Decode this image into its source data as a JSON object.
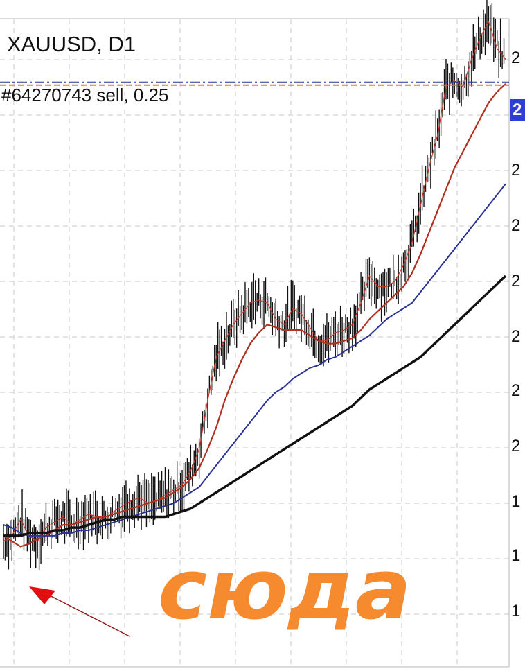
{
  "header": {
    "title": "XAUUSD, D1",
    "order_label": "#64270743 sell, 0.25"
  },
  "price_tag": "2",
  "y_tick_labels": [
    "2",
    "2",
    "2",
    "2",
    "2",
    "2",
    "2",
    "1",
    "1",
    "1"
  ],
  "annotation": {
    "text": "сюда",
    "color": "#f68a2e"
  },
  "colors": {
    "ma_fast": "#c0392b",
    "ma_mid": "#b03020",
    "ma_slow": "#2a3296",
    "ma_long": "#111111",
    "arrow": "#e01010",
    "order_line": "#2a3296",
    "order_dash": "#c9862a",
    "price_tag_bg": "#2f3fd6"
  },
  "chart_data": {
    "type": "line",
    "title": "XAUUSD, D1",
    "series": [
      {
        "values": [
          0.78,
          0.8,
          0.86,
          0.8,
          0.78,
          0.83,
          0.85,
          0.87,
          0.84,
          0.86,
          0.88,
          0.87,
          0.86,
          0.89,
          0.91,
          0.93,
          0.94,
          0.92,
          0.93,
          0.95,
          0.97,
          0.99,
          1.04,
          1.12,
          1.3,
          1.46,
          1.52,
          1.58,
          1.62,
          1.66,
          1.67,
          1.66,
          1.6,
          1.58,
          1.64,
          1.62,
          1.57,
          1.52,
          1.52,
          1.55,
          1.56,
          1.58,
          1.66,
          1.76,
          1.72,
          1.72,
          1.74,
          1.8,
          1.88,
          2.02,
          2.16,
          2.28,
          2.46,
          2.48,
          2.46,
          2.56,
          2.64,
          2.7,
          2.6,
          2.56
        ]
      },
      {
        "values": [
          0.8,
          0.78,
          0.76,
          0.77,
          0.79,
          0.8,
          0.82,
          0.84,
          0.84,
          0.85,
          0.86,
          0.87,
          0.87,
          0.88,
          0.89,
          0.9,
          0.91,
          0.92,
          0.93,
          0.94,
          0.96,
          0.98,
          1.01,
          1.05,
          1.12,
          1.2,
          1.3,
          1.38,
          1.45,
          1.51,
          1.55,
          1.58,
          1.57,
          1.56,
          1.56,
          1.56,
          1.54,
          1.52,
          1.51,
          1.51,
          1.52,
          1.53,
          1.56,
          1.6,
          1.63,
          1.66,
          1.69,
          1.72,
          1.77,
          1.84,
          1.92,
          2.0,
          2.08,
          2.16,
          2.22,
          2.28,
          2.34,
          2.4,
          2.44,
          2.47
        ]
      },
      {
        "values": [
          0.84,
          0.83,
          0.81,
          0.8,
          0.8,
          0.8,
          0.8,
          0.81,
          0.81,
          0.82,
          0.82,
          0.83,
          0.84,
          0.85,
          0.86,
          0.87,
          0.88,
          0.89,
          0.9,
          0.91,
          0.92,
          0.94,
          0.96,
          0.98,
          1.02,
          1.06,
          1.1,
          1.14,
          1.18,
          1.22,
          1.26,
          1.3,
          1.33,
          1.35,
          1.38,
          1.4,
          1.42,
          1.43,
          1.45,
          1.46,
          1.48,
          1.5,
          1.52,
          1.54,
          1.57,
          1.6,
          1.62,
          1.64,
          1.66,
          1.7,
          1.74,
          1.78,
          1.82,
          1.86,
          1.9,
          1.94,
          1.98,
          2.02,
          2.06,
          2.1
        ]
      },
      {
        "values": [
          0.8,
          0.8,
          0.8,
          0.81,
          0.81,
          0.81,
          0.82,
          0.82,
          0.83,
          0.83,
          0.84,
          0.85,
          0.86,
          0.86,
          0.87,
          0.87,
          0.87,
          0.87,
          0.87,
          0.87,
          0.88,
          0.89,
          0.9,
          0.92,
          0.94,
          0.96,
          0.98,
          1.0,
          1.02,
          1.04,
          1.06,
          1.08,
          1.1,
          1.12,
          1.14,
          1.16,
          1.18,
          1.2,
          1.22,
          1.24,
          1.26,
          1.28,
          1.31,
          1.34,
          1.36,
          1.38,
          1.4,
          1.42,
          1.44,
          1.46,
          1.49,
          1.52,
          1.55,
          1.58,
          1.61,
          1.64,
          1.67,
          1.7,
          1.73,
          1.76
        ]
      }
    ],
    "ylim": [
      0.5,
      2.6
    ],
    "grid": true,
    "order_level": 2.47
  }
}
